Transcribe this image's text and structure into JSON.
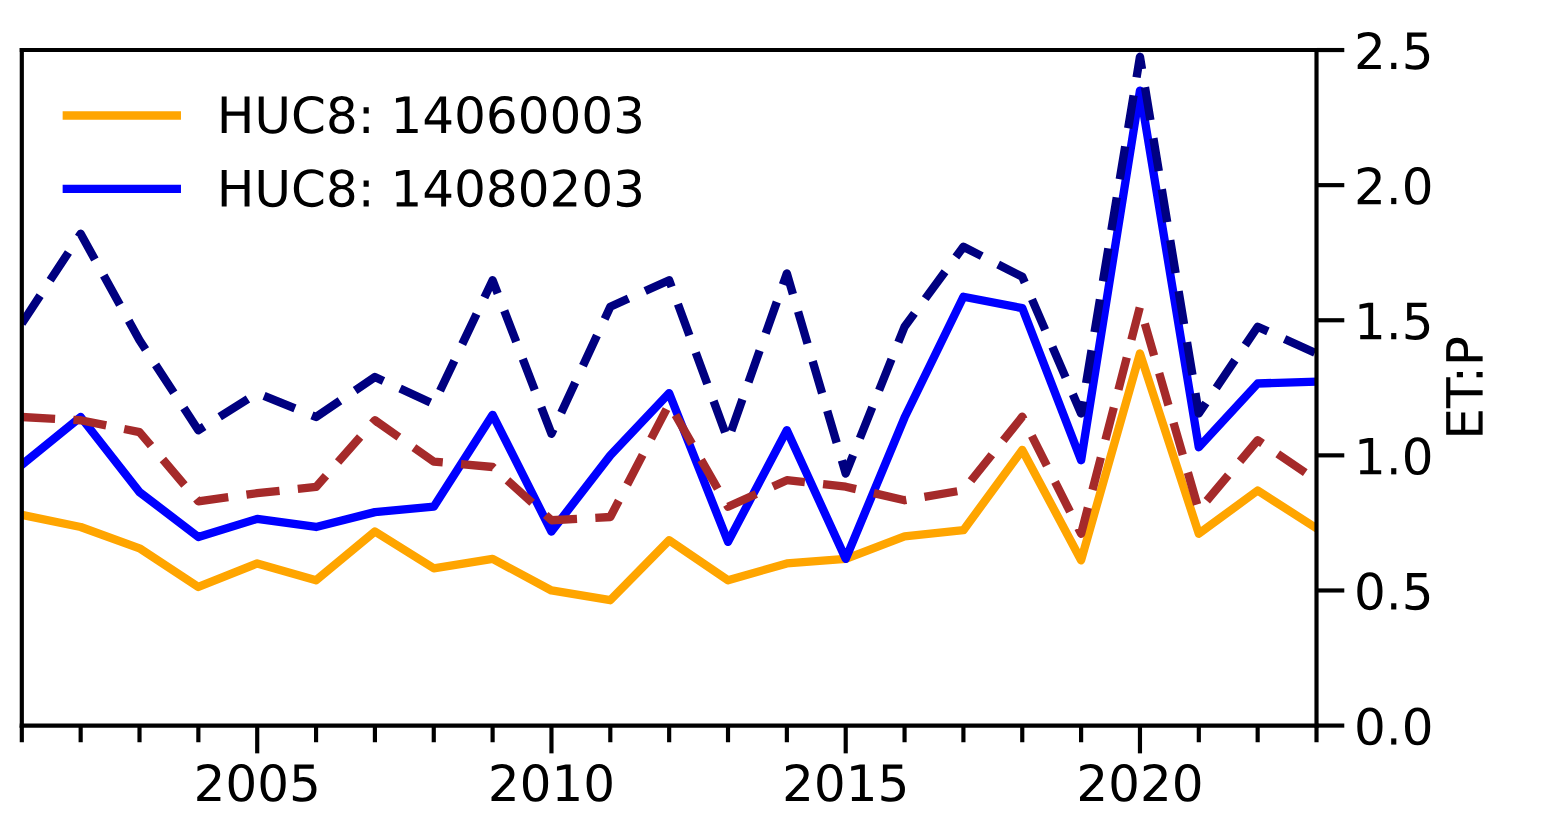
{
  "chart_data": {
    "type": "line",
    "ylabel": "ET:P",
    "x": [
      2001,
      2002,
      2003,
      2004,
      2005,
      2006,
      2007,
      2008,
      2009,
      2010,
      2011,
      2012,
      2013,
      2014,
      2015,
      2016,
      2017,
      2018,
      2019,
      2020,
      2021,
      2022,
      2023
    ],
    "series": [
      {
        "name": "HUC8: 14060003",
        "color": "#ffa500",
        "line_style": "solid",
        "values": [
          0.78,
          0.735,
          0.656,
          0.513,
          0.6,
          0.538,
          0.718,
          0.582,
          0.617,
          0.5,
          0.464,
          0.686,
          0.538,
          0.6,
          0.617,
          0.7,
          0.723,
          1.02,
          0.612,
          1.377,
          0.71,
          0.87,
          0.73
        ]
      },
      {
        "name": "HUC8: 14080203",
        "color": "#0000ff",
        "line_style": "solid",
        "values": [
          0.965,
          1.142,
          0.864,
          0.698,
          0.765,
          0.735,
          0.79,
          0.81,
          1.15,
          0.718,
          1.0,
          1.23,
          0.68,
          1.093,
          0.617,
          1.14,
          1.587,
          1.545,
          0.982,
          2.35,
          1.03,
          1.266,
          1.273
        ]
      },
      {
        "color": "#a52a2a",
        "line_style": "dashed",
        "values": [
          1.142,
          1.13,
          1.086,
          0.83,
          0.86,
          0.883,
          1.13,
          0.977,
          0.957,
          0.76,
          0.772,
          1.19,
          0.81,
          0.908,
          0.884,
          0.834,
          0.871,
          1.143,
          0.71,
          1.55,
          0.797,
          1.056,
          0.908
        ]
      },
      {
        "color": "#000080",
        "line_style": "dashed",
        "values": [
          1.488,
          1.82,
          1.426,
          1.093,
          1.23,
          1.142,
          1.29,
          1.19,
          1.648,
          1.08,
          1.55,
          1.648,
          1.056,
          1.673,
          0.933,
          1.476,
          1.772,
          1.661,
          1.155,
          2.475,
          1.155,
          1.476,
          1.377
        ]
      }
    ],
    "xlim": [
      2001,
      2023
    ],
    "ylim": [
      0,
      2.5
    ],
    "yticks": [
      {
        "value": 0,
        "label": "0.0"
      },
      0.5,
      {
        "value": 1,
        "label": "1.0"
      },
      1.5,
      {
        "value": 2,
        "label": "2.0"
      },
      2.5
    ],
    "xticks": [
      {
        "value": 2001,
        "label": null
      },
      {
        "value": 2002,
        "label": null
      },
      {
        "value": 2003,
        "label": null
      },
      {
        "value": 2004,
        "label": null
      },
      2005,
      {
        "value": 2006,
        "label": null
      },
      {
        "value": 2007,
        "label": null
      },
      {
        "value": 2008,
        "label": null
      },
      {
        "value": 2009,
        "label": null
      },
      2010,
      {
        "value": 2011,
        "label": null
      },
      {
        "value": 2012,
        "label": null
      },
      {
        "value": 2013,
        "label": null
      },
      {
        "value": 2014,
        "label": null
      },
      2015,
      {
        "value": 2016,
        "label": null
      },
      {
        "value": 2017,
        "label": null
      },
      {
        "value": 2018,
        "label": null
      },
      {
        "value": 2019,
        "label": null
      },
      2020,
      {
        "value": 2021,
        "label": null
      },
      {
        "value": 2022,
        "label": null
      },
      {
        "value": 2023,
        "label": null
      }
    ],
    "legend": "top left",
    "grid": false
  }
}
